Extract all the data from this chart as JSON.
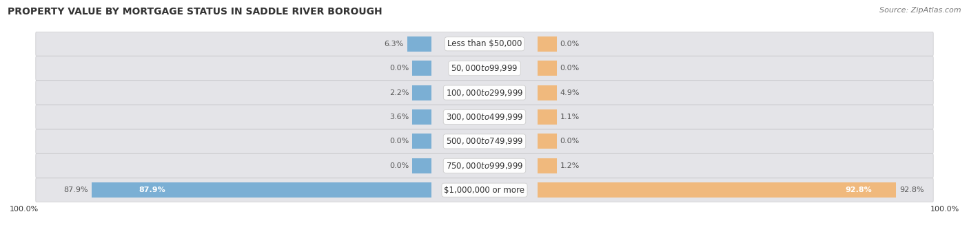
{
  "title": "PROPERTY VALUE BY MORTGAGE STATUS IN SADDLE RIVER BOROUGH",
  "source": "Source: ZipAtlas.com",
  "categories": [
    "Less than $50,000",
    "$50,000 to $99,999",
    "$100,000 to $299,999",
    "$300,000 to $499,999",
    "$500,000 to $749,999",
    "$750,000 to $999,999",
    "$1,000,000 or more"
  ],
  "without_mortgage": [
    6.3,
    0.0,
    2.2,
    3.6,
    0.0,
    0.0,
    87.9
  ],
  "with_mortgage": [
    0.0,
    0.0,
    4.9,
    1.1,
    0.0,
    1.2,
    92.8
  ],
  "color_without": "#7bafd4",
  "color_with": "#f0b97d",
  "bg_row_color": "#e4e4e8",
  "bg_row_color_last": "#5fa8d3",
  "title_fontsize": 10,
  "source_fontsize": 8,
  "label_fontsize": 8.5,
  "bar_label_fontsize": 8,
  "legend_fontsize": 8,
  "axis_label_fontsize": 8,
  "total_without": 100.0,
  "total_with": 100.0,
  "max_val": 100.0,
  "min_bar_width": 5.0
}
